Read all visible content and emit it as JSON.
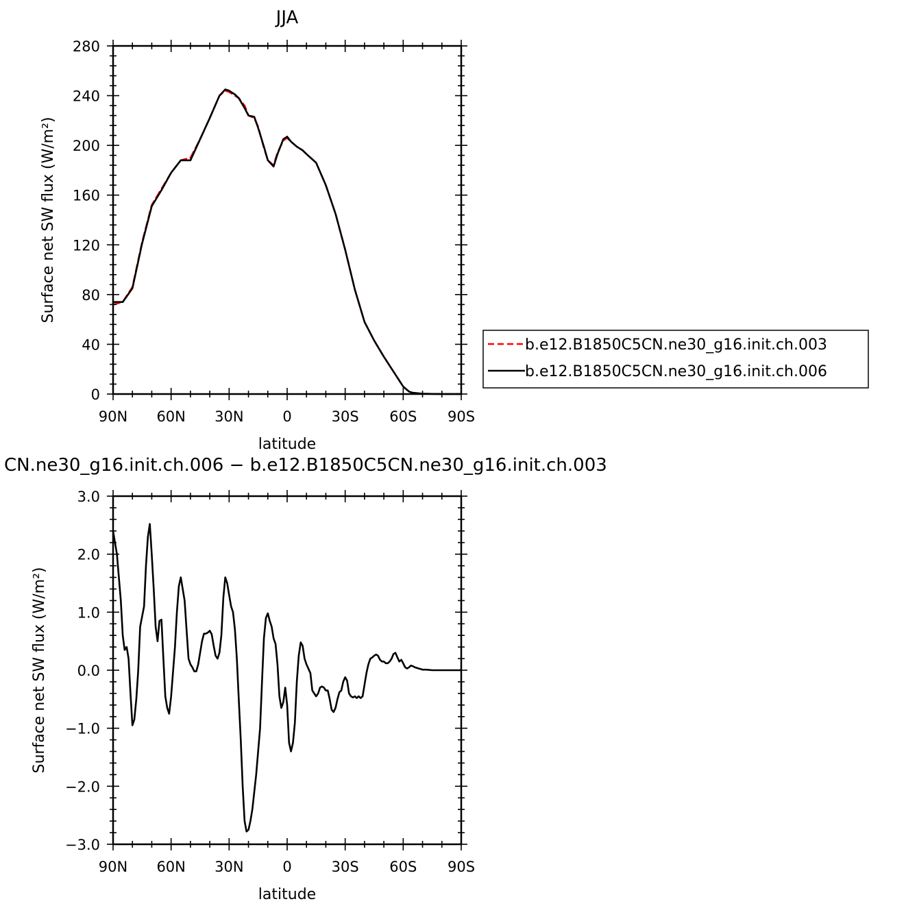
{
  "chart_data": [
    {
      "type": "line",
      "title": "JJA",
      "xlabel": "latitude",
      "ylabel": "Surface net SW flux (W/m²)",
      "x_tick_labels": [
        "90N",
        "60N",
        "30N",
        "0",
        "30S",
        "60S",
        "90S"
      ],
      "y_tick_labels": [
        "0",
        "40",
        "80",
        "120",
        "160",
        "200",
        "240",
        "280"
      ],
      "xlim": [
        90,
        -90
      ],
      "ylim": [
        0,
        280
      ],
      "grid": false,
      "legend_position": "right",
      "x": [
        90,
        85,
        80,
        75,
        70,
        65,
        60,
        55,
        50,
        45,
        40,
        35,
        32,
        30,
        27,
        25,
        22,
        20,
        17,
        15,
        12,
        10,
        7,
        5,
        2,
        0,
        -2,
        -5,
        -8,
        -10,
        -15,
        -20,
        -25,
        -30,
        -35,
        -40,
        -45,
        -50,
        -55,
        -60,
        -63,
        -65,
        -70,
        -75,
        -80,
        -85,
        -90
      ],
      "series": [
        {
          "name": "b.e12.B1850C5CN.ne30_g16.init.ch.003",
          "color": "#ff0000",
          "dash": "dashed",
          "values": [
            72,
            74,
            86,
            122,
            152,
            165,
            178,
            188,
            190,
            205,
            222,
            240,
            244,
            243,
            240,
            238,
            232,
            224,
            222,
            215,
            198,
            188,
            184,
            194,
            204,
            206,
            203,
            199,
            196,
            193,
            186,
            168,
            145,
            116,
            84,
            58,
            43,
            30,
            18,
            6,
            2,
            1,
            0.3,
            0.1,
            0,
            0,
            0
          ]
        },
        {
          "name": "b.e12.B1850C5CN.ne30_g16.init.ch.006",
          "color": "#000000",
          "dash": "solid",
          "values": [
            74,
            74,
            85,
            121,
            151,
            164,
            178,
            188,
            188,
            205,
            222,
            240,
            245,
            244,
            241,
            238,
            230,
            224,
            223,
            214,
            199,
            188,
            183,
            193,
            205,
            207,
            203,
            199,
            196,
            193,
            186,
            168,
            145,
            116,
            84,
            58,
            43,
            30,
            18,
            6,
            2,
            1,
            0.3,
            0.1,
            0,
            0,
            0
          ]
        }
      ]
    },
    {
      "type": "line",
      "title": "CN.ne30_g16.init.ch.006 − b.e12.B1850C5CN.ne30_g16.init.ch.003",
      "xlabel": "latitude",
      "ylabel": "Surface net SW flux (W/m²)",
      "x_tick_labels": [
        "90N",
        "60N",
        "30N",
        "0",
        "30S",
        "60S",
        "90S"
      ],
      "y_tick_labels": [
        "−3.0",
        "−2.0",
        "−1.0",
        "0.0",
        "1.0",
        "2.0",
        "3.0"
      ],
      "xlim": [
        90,
        -90
      ],
      "ylim": [
        -3,
        3
      ],
      "grid": false,
      "series": [
        {
          "color": "#000000",
          "dash": "solid",
          "x": [
            90,
            88,
            86,
            85,
            84,
            83,
            82,
            81,
            80,
            79,
            78,
            77,
            76,
            74,
            73,
            72,
            71,
            70,
            69,
            68,
            67,
            66,
            65,
            64,
            63,
            62,
            61,
            60,
            58,
            57,
            56,
            55,
            54,
            53,
            52,
            51,
            50,
            49,
            48,
            47,
            46,
            45,
            44,
            43,
            42,
            41,
            40,
            39,
            38,
            37,
            36,
            35,
            34,
            33,
            32,
            31,
            30,
            29,
            28,
            27,
            26,
            25,
            24,
            23,
            22,
            21,
            20,
            19,
            18,
            16,
            14,
            13,
            12,
            11,
            10,
            9,
            8,
            7,
            6,
            5,
            4,
            3,
            2,
            1,
            0,
            -1,
            -2,
            -3,
            -4,
            -5,
            -6,
            -7,
            -8,
            -9,
            -10,
            -12,
            -13,
            -14,
            -15,
            -16,
            -17,
            -18,
            -19,
            -20,
            -21,
            -22,
            -23,
            -24,
            -25,
            -26,
            -27,
            -28,
            -29,
            -30,
            -31,
            -32,
            -33,
            -34,
            -35,
            -36,
            -37,
            -38,
            -39,
            -40,
            -41,
            -42,
            -43,
            -44,
            -45,
            -46,
            -47,
            -48,
            -49,
            -50,
            -51,
            -52,
            -53,
            -54,
            -55,
            -56,
            -57,
            -58,
            -59,
            -60,
            -61,
            -62,
            -63,
            -64,
            -65,
            -66,
            -67,
            -68,
            -69,
            -70,
            -72,
            -75,
            -80,
            -85,
            -90
          ],
          "values": [
            2.4,
            2.0,
            1.2,
            0.6,
            0.35,
            0.4,
            0.2,
            -0.4,
            -0.95,
            -0.85,
            -0.5,
            0,
            0.75,
            1.1,
            1.8,
            2.3,
            2.52,
            2.0,
            1.4,
            0.75,
            0.5,
            0.85,
            0.87,
            0.2,
            -0.45,
            -0.65,
            -0.75,
            -0.45,
            0.4,
            1.0,
            1.45,
            1.6,
            1.4,
            1.2,
            0.7,
            0.2,
            0.1,
            0.05,
            -0.02,
            -0.02,
            0.1,
            0.3,
            0.5,
            0.63,
            0.63,
            0.65,
            0.68,
            0.62,
            0.42,
            0.25,
            0.2,
            0.3,
            0.6,
            1.25,
            1.6,
            1.5,
            1.3,
            1.1,
            1.0,
            0.7,
            0.2,
            -0.5,
            -1.2,
            -2.0,
            -2.6,
            -2.78,
            -2.75,
            -2.6,
            -2.4,
            -1.8,
            -1.0,
            -0.2,
            0.55,
            0.9,
            0.98,
            0.85,
            0.75,
            0.55,
            0.45,
            0.1,
            -0.45,
            -0.65,
            -0.55,
            -0.3,
            -0.6,
            -1.25,
            -1.4,
            -1.25,
            -0.9,
            -0.2,
            0.25,
            0.48,
            0.42,
            0.2,
            0.1,
            -0.05,
            -0.35,
            -0.4,
            -0.45,
            -0.4,
            -0.3,
            -0.28,
            -0.3,
            -0.35,
            -0.35,
            -0.5,
            -0.68,
            -0.72,
            -0.65,
            -0.5,
            -0.38,
            -0.35,
            -0.2,
            -0.12,
            -0.18,
            -0.4,
            -0.45,
            -0.47,
            -0.45,
            -0.48,
            -0.45,
            -0.48,
            -0.45,
            -0.25,
            -0.05,
            0.1,
            0.2,
            0.22,
            0.25,
            0.27,
            0.25,
            0.18,
            0.15,
            0.15,
            0.12,
            0.12,
            0.15,
            0.2,
            0.28,
            0.3,
            0.22,
            0.15,
            0.18,
            0.12,
            0.05,
            0.03,
            0.05,
            0.08,
            0.07,
            0.05,
            0.04,
            0.03,
            0.02,
            0.01,
            0.01,
            0,
            0,
            0,
            0
          ]
        }
      ]
    }
  ]
}
